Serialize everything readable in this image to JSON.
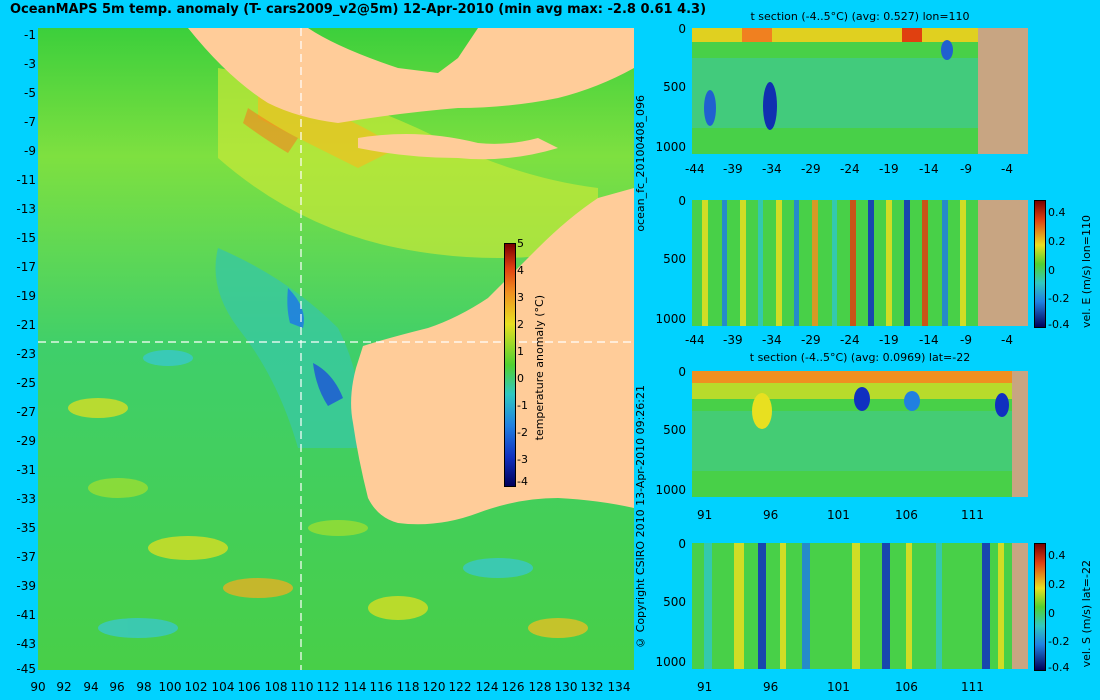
{
  "title": "OceanMAPS 5m temp. anomaly (T- cars2009_v2@5m) 12-Apr-2010 (min avg max: -2.8 0.61 4.3)",
  "map": {
    "lat_labels": [
      "-1",
      "-3",
      "-5",
      "-7",
      "-9",
      "-11",
      "-13",
      "-15",
      "-17",
      "-19",
      "-21",
      "-23",
      "-25",
      "-27",
      "-29",
      "-31",
      "-33",
      "-35",
      "-37",
      "-39",
      "-41",
      "-43",
      "-45"
    ],
    "lon_labels": [
      "90",
      "92",
      "94",
      "96",
      "98",
      "100",
      "102",
      "104",
      "106",
      "108",
      "110",
      "112",
      "114",
      "116",
      "118",
      "120",
      "122",
      "124",
      "126",
      "128",
      "130",
      "132",
      "134"
    ],
    "section_lon": 110,
    "section_lat": -22
  },
  "colorbar": {
    "label": "temperature anomaly (°C)",
    "ticks": [
      "5",
      "4",
      "3",
      "2",
      "1",
      "0",
      "-1",
      "-2",
      "-3",
      "-4"
    ]
  },
  "side_labels": {
    "forecast_id": "ocean_fc_20100408_096",
    "copyright": "© Copyright CSIRO 2010  13-Apr-2010 09:26:21"
  },
  "panels": [
    {
      "title": "t section (-4..5°C) (avg: 0.527) lon=110",
      "depth_ticks": [
        "0",
        "500",
        "1000"
      ],
      "x_ticks": [
        "-44",
        "-39",
        "-34",
        "-29",
        "-24",
        "-19",
        "-14",
        "-9",
        "-4"
      ],
      "colorbar_label": "",
      "colorbar_ticks": []
    },
    {
      "title": "",
      "depth_ticks": [
        "0",
        "500",
        "1000"
      ],
      "x_ticks": [
        "-44",
        "-39",
        "-34",
        "-29",
        "-24",
        "-19",
        "-14",
        "-9",
        "-4"
      ],
      "colorbar_label": "vel. E (m/s) lon=110",
      "colorbar_ticks": [
        "0.4",
        "0.2",
        "0",
        "-0.2",
        "-0.4"
      ]
    },
    {
      "title": "t section (-4..5°C) (avg: 0.0969) lat=-22",
      "depth_ticks": [
        "0",
        "500",
        "1000"
      ],
      "x_ticks": [
        "91",
        "96",
        "101",
        "106",
        "111"
      ],
      "colorbar_label": "",
      "colorbar_ticks": []
    },
    {
      "title": "",
      "depth_ticks": [
        "0",
        "500",
        "1000"
      ],
      "x_ticks": [
        "91",
        "96",
        "101",
        "106",
        "111"
      ],
      "colorbar_label": "vel. S (m/s) lat=-22",
      "colorbar_ticks": [
        "0.4",
        "0.2",
        "0",
        "-0.2",
        "-0.4"
      ]
    }
  ],
  "colors": {
    "background": "#00d2ff",
    "land": "#ffcc99",
    "land_section": "#c8a582",
    "anomaly_zero": "#30c030"
  }
}
